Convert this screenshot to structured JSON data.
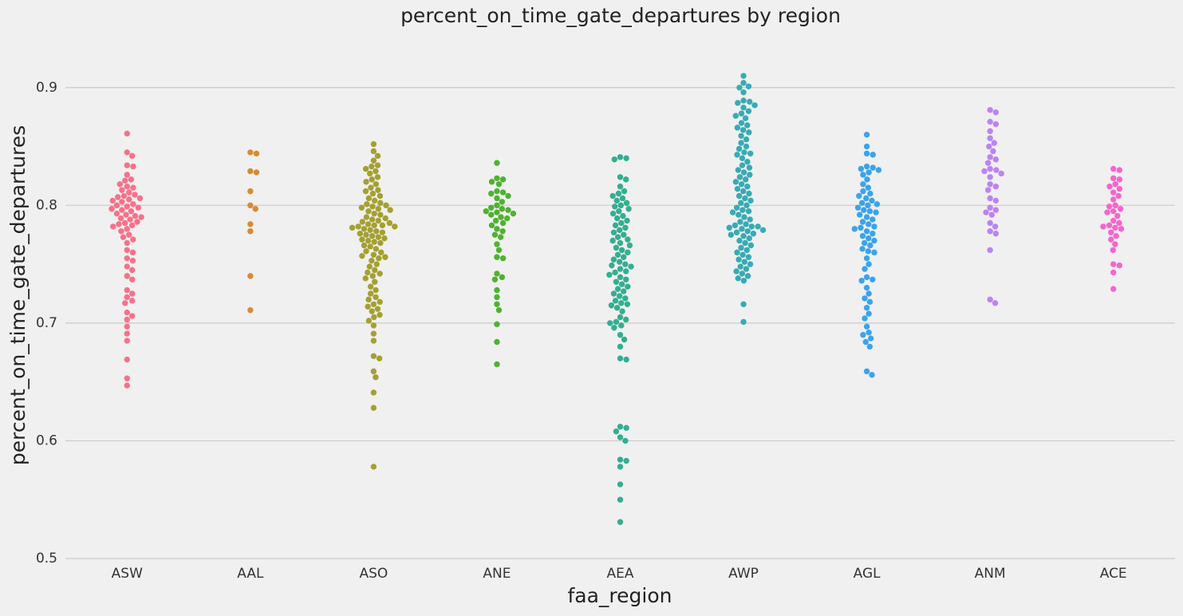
{
  "chart_data": {
    "type": "swarm",
    "title": "percent_on_time_gate_departures by region",
    "xlabel": "faa_region",
    "ylabel": "percent_on_time_gate_departures",
    "ylim": [
      0.5,
      0.95
    ],
    "yticks": [
      0.5,
      0.6,
      0.7,
      0.8,
      0.9
    ],
    "grid": true,
    "categories": [
      "ASW",
      "AAL",
      "ASO",
      "ANE",
      "AEA",
      "AWP",
      "AGL",
      "ANM",
      "ACE"
    ],
    "colors": [
      "#f77189",
      "#d58c32",
      "#a4a031",
      "#50b131",
      "#34ae91",
      "#37abb5",
      "#3ba3ec",
      "#bb83f4",
      "#f565cc"
    ],
    "values": [
      [
        0.861,
        0.845,
        0.842,
        0.834,
        0.833,
        0.826,
        0.822,
        0.821,
        0.818,
        0.816,
        0.815,
        0.813,
        0.811,
        0.809,
        0.808,
        0.807,
        0.806,
        0.805,
        0.804,
        0.803,
        0.801,
        0.8,
        0.799,
        0.798,
        0.797,
        0.796,
        0.795,
        0.793,
        0.792,
        0.791,
        0.79,
        0.789,
        0.788,
        0.786,
        0.785,
        0.784,
        0.783,
        0.782,
        0.78,
        0.778,
        0.775,
        0.773,
        0.771,
        0.768,
        0.762,
        0.76,
        0.755,
        0.753,
        0.748,
        0.745,
        0.74,
        0.737,
        0.728,
        0.725,
        0.722,
        0.719,
        0.717,
        0.709,
        0.706,
        0.703,
        0.697,
        0.691,
        0.685,
        0.669,
        0.653,
        0.647
      ],
      [
        0.845,
        0.844,
        0.829,
        0.828,
        0.812,
        0.8,
        0.797,
        0.784,
        0.778,
        0.74,
        0.711
      ],
      [
        0.852,
        0.846,
        0.842,
        0.838,
        0.834,
        0.833,
        0.831,
        0.829,
        0.827,
        0.824,
        0.822,
        0.82,
        0.818,
        0.815,
        0.813,
        0.812,
        0.81,
        0.808,
        0.806,
        0.804,
        0.802,
        0.801,
        0.8,
        0.799,
        0.798,
        0.797,
        0.796,
        0.795,
        0.793,
        0.792,
        0.79,
        0.789,
        0.788,
        0.787,
        0.786,
        0.785,
        0.784,
        0.783,
        0.783,
        0.782,
        0.782,
        0.781,
        0.78,
        0.779,
        0.778,
        0.777,
        0.776,
        0.775,
        0.774,
        0.773,
        0.772,
        0.771,
        0.77,
        0.769,
        0.768,
        0.766,
        0.765,
        0.763,
        0.761,
        0.76,
        0.758,
        0.757,
        0.756,
        0.755,
        0.753,
        0.75,
        0.748,
        0.745,
        0.743,
        0.742,
        0.74,
        0.738,
        0.735,
        0.731,
        0.728,
        0.725,
        0.722,
        0.72,
        0.718,
        0.716,
        0.714,
        0.712,
        0.71,
        0.707,
        0.705,
        0.702,
        0.698,
        0.691,
        0.685,
        0.672,
        0.67,
        0.659,
        0.654,
        0.641,
        0.628,
        0.578
      ],
      [
        0.836,
        0.823,
        0.822,
        0.82,
        0.818,
        0.812,
        0.811,
        0.81,
        0.808,
        0.806,
        0.803,
        0.8,
        0.798,
        0.797,
        0.796,
        0.795,
        0.794,
        0.793,
        0.792,
        0.79,
        0.789,
        0.787,
        0.785,
        0.783,
        0.78,
        0.778,
        0.775,
        0.773,
        0.767,
        0.762,
        0.756,
        0.755,
        0.742,
        0.739,
        0.737,
        0.728,
        0.722,
        0.716,
        0.711,
        0.699,
        0.684,
        0.665
      ],
      [
        0.841,
        0.84,
        0.839,
        0.824,
        0.822,
        0.816,
        0.812,
        0.81,
        0.808,
        0.806,
        0.804,
        0.802,
        0.8,
        0.799,
        0.797,
        0.795,
        0.793,
        0.791,
        0.789,
        0.787,
        0.785,
        0.783,
        0.781,
        0.779,
        0.777,
        0.775,
        0.773,
        0.771,
        0.77,
        0.768,
        0.766,
        0.764,
        0.762,
        0.76,
        0.758,
        0.756,
        0.754,
        0.752,
        0.75,
        0.749,
        0.748,
        0.746,
        0.744,
        0.743,
        0.741,
        0.739,
        0.737,
        0.735,
        0.733,
        0.731,
        0.729,
        0.727,
        0.725,
        0.723,
        0.721,
        0.719,
        0.717,
        0.716,
        0.715,
        0.713,
        0.71,
        0.705,
        0.703,
        0.701,
        0.7,
        0.698,
        0.696,
        0.69,
        0.686,
        0.68,
        0.67,
        0.669,
        0.612,
        0.611,
        0.608,
        0.603,
        0.6,
        0.584,
        0.583,
        0.578,
        0.563,
        0.55,
        0.531
      ],
      [
        0.91,
        0.904,
        0.901,
        0.9,
        0.896,
        0.889,
        0.888,
        0.887,
        0.885,
        0.883,
        0.88,
        0.878,
        0.876,
        0.874,
        0.87,
        0.868,
        0.866,
        0.864,
        0.862,
        0.859,
        0.856,
        0.853,
        0.85,
        0.848,
        0.845,
        0.844,
        0.843,
        0.84,
        0.837,
        0.834,
        0.832,
        0.83,
        0.828,
        0.826,
        0.824,
        0.822,
        0.82,
        0.818,
        0.816,
        0.814,
        0.812,
        0.81,
        0.808,
        0.806,
        0.804,
        0.802,
        0.8,
        0.798,
        0.796,
        0.795,
        0.794,
        0.792,
        0.79,
        0.788,
        0.786,
        0.784,
        0.783,
        0.782,
        0.782,
        0.781,
        0.78,
        0.779,
        0.778,
        0.777,
        0.776,
        0.775,
        0.774,
        0.772,
        0.77,
        0.768,
        0.766,
        0.764,
        0.762,
        0.76,
        0.758,
        0.756,
        0.754,
        0.752,
        0.75,
        0.748,
        0.746,
        0.744,
        0.742,
        0.74,
        0.738,
        0.736,
        0.716,
        0.701
      ],
      [
        0.86,
        0.85,
        0.844,
        0.843,
        0.833,
        0.832,
        0.831,
        0.83,
        0.828,
        0.826,
        0.822,
        0.818,
        0.815,
        0.812,
        0.81,
        0.808,
        0.806,
        0.804,
        0.802,
        0.801,
        0.8,
        0.798,
        0.796,
        0.795,
        0.794,
        0.792,
        0.79,
        0.788,
        0.786,
        0.784,
        0.782,
        0.781,
        0.78,
        0.778,
        0.776,
        0.774,
        0.772,
        0.77,
        0.768,
        0.766,
        0.763,
        0.761,
        0.76,
        0.755,
        0.75,
        0.746,
        0.739,
        0.737,
        0.736,
        0.73,
        0.725,
        0.721,
        0.718,
        0.713,
        0.708,
        0.704,
        0.697,
        0.692,
        0.69,
        0.687,
        0.684,
        0.68,
        0.659,
        0.656
      ],
      [
        0.881,
        0.879,
        0.871,
        0.869,
        0.863,
        0.857,
        0.853,
        0.85,
        0.846,
        0.841,
        0.839,
        0.836,
        0.831,
        0.83,
        0.829,
        0.827,
        0.824,
        0.818,
        0.816,
        0.813,
        0.806,
        0.804,
        0.798,
        0.796,
        0.794,
        0.792,
        0.785,
        0.782,
        0.778,
        0.776,
        0.762,
        0.72,
        0.717
      ],
      [
        0.831,
        0.83,
        0.823,
        0.822,
        0.818,
        0.816,
        0.814,
        0.811,
        0.808,
        0.805,
        0.8,
        0.799,
        0.797,
        0.795,
        0.794,
        0.791,
        0.787,
        0.785,
        0.783,
        0.782,
        0.781,
        0.78,
        0.777,
        0.774,
        0.771,
        0.767,
        0.762,
        0.75,
        0.749,
        0.743,
        0.729
      ]
    ]
  }
}
